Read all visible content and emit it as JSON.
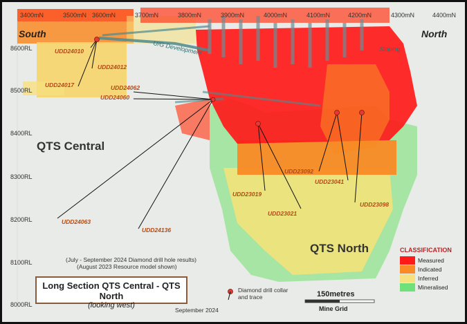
{
  "map": {
    "northings": [
      {
        "label": "3400mN"
      },
      {
        "label": "3500mN"
      },
      {
        "label": "3600mN"
      },
      {
        "label": "3700mN"
      },
      {
        "label": "3800mN"
      },
      {
        "label": "3900mN"
      },
      {
        "label": "4000mN"
      },
      {
        "label": "4100mN"
      },
      {
        "label": "4200mN"
      },
      {
        "label": "4300mN"
      },
      {
        "label": "4400mN"
      }
    ],
    "reduced_levels": [
      {
        "label": "8600RL"
      },
      {
        "label": "8500RL"
      },
      {
        "label": "8400RL"
      },
      {
        "label": "8300RL"
      },
      {
        "label": "8200RL"
      },
      {
        "label": "8100RL"
      },
      {
        "label": "8000RL"
      }
    ],
    "direction_south": "South",
    "direction_north": "North",
    "area_qts_central": "QTS Central",
    "area_qts_north": "QTS North",
    "ug_development": "U/G Development",
    "stoping": "Stoping",
    "drill_holes": [
      {
        "id": "UDD24010"
      },
      {
        "id": "UDD24012"
      },
      {
        "id": "UDD24017"
      },
      {
        "id": "UDD24062"
      },
      {
        "id": "UDD24060"
      },
      {
        "id": "UDD24063"
      },
      {
        "id": "UDD24136"
      },
      {
        "id": "UDD23019"
      },
      {
        "id": "UDD23021"
      },
      {
        "id": "UDD23092"
      },
      {
        "id": "UDD23041"
      },
      {
        "id": "UDD23098"
      }
    ],
    "notes": {
      "line1": "(July - September 2024 Diamond drill hole results)",
      "line2": "(August 2023 Resource model shown)"
    },
    "title_main": "Long Section QTS Central - QTS North",
    "title_sub": "(looking west)",
    "date": "September 2024",
    "legend": {
      "collar_label_1": "Diamond drill collar",
      "collar_label_2": "and trace",
      "scale_label": "150metres",
      "grid_label": "Mine Grid",
      "classification_title": "CLASSIFICATION",
      "classes": [
        {
          "label": "Measured",
          "color": "#ff1a1a"
        },
        {
          "label": "Indicated",
          "color": "#f98a25"
        },
        {
          "label": "Inferred",
          "color": "#f7e07e"
        },
        {
          "label": "Mineralised",
          "color": "#6fe07a"
        }
      ]
    },
    "colors": {
      "measured": "#ff1a1a",
      "indicated": "#f98a25",
      "inferred": "#f7e07e",
      "mineralised": "#6fe07a",
      "collar": "#e53935",
      "development": "#4f8a8c"
    }
  }
}
